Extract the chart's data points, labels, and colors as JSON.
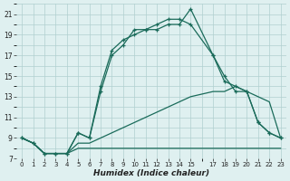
{
  "xlabel": "Humidex (Indice chaleur)",
  "bg_color": "#dff0f0",
  "grid_color": "#b0d0d0",
  "line_color": "#1a6b5a",
  "xlim": [
    -0.5,
    23.5
  ],
  "ylim": [
    7,
    22
  ],
  "xtick_vals": [
    0,
    1,
    2,
    3,
    4,
    5,
    6,
    7,
    8,
    9,
    10,
    11,
    12,
    13,
    14,
    15,
    17,
    18,
    19,
    20,
    21,
    22,
    23
  ],
  "ytick_vals": [
    7,
    9,
    11,
    13,
    15,
    17,
    19,
    21
  ],
  "curve1_x": [
    0,
    1,
    2,
    3,
    4,
    5,
    6,
    7,
    8,
    9,
    10,
    11,
    12,
    13,
    14,
    15,
    17,
    18,
    19,
    20,
    21,
    22,
    23
  ],
  "curve1_y": [
    9,
    8.5,
    7.5,
    7.5,
    7.5,
    9.5,
    9,
    13.5,
    17,
    18,
    19.5,
    19.5,
    19.5,
    20,
    20,
    21.5,
    17,
    14.5,
    14,
    13.5,
    10.5,
    9.5,
    9
  ],
  "curve2_x": [
    0,
    1,
    2,
    3,
    4,
    5,
    6,
    7,
    8,
    9,
    10,
    11,
    12,
    13,
    14,
    15,
    17,
    18,
    19,
    20,
    21,
    22,
    23
  ],
  "curve2_y": [
    9,
    8.5,
    7.5,
    7.5,
    7.5,
    9.5,
    9,
    14,
    17.5,
    18.5,
    19,
    19.5,
    20,
    20.5,
    20.5,
    20,
    17,
    15,
    13.5,
    13.5,
    10.5,
    9.5,
    9
  ],
  "ref1_x": [
    0,
    1,
    2,
    3,
    4,
    5,
    6,
    7,
    8,
    9,
    10,
    11,
    12,
    13,
    14,
    15,
    17,
    18,
    19,
    20,
    21,
    22,
    23
  ],
  "ref1_y": [
    9,
    8.5,
    7.5,
    7.5,
    7.5,
    8.5,
    8.5,
    9,
    9.5,
    10,
    10.5,
    11,
    11.5,
    12,
    12.5,
    13,
    13.5,
    13.5,
    14,
    13.5,
    13,
    12.5,
    9.0
  ],
  "ref2_x": [
    0,
    1,
    2,
    3,
    4,
    5,
    6,
    7,
    8,
    9,
    10,
    11,
    12,
    13,
    14,
    15,
    17,
    18,
    19,
    20,
    21,
    22,
    23
  ],
  "ref2_y": [
    9,
    8.5,
    7.5,
    7.5,
    7.5,
    8,
    8,
    8,
    8,
    8,
    8,
    8,
    8,
    8,
    8,
    8,
    8,
    8,
    8,
    8,
    8,
    8,
    8
  ]
}
